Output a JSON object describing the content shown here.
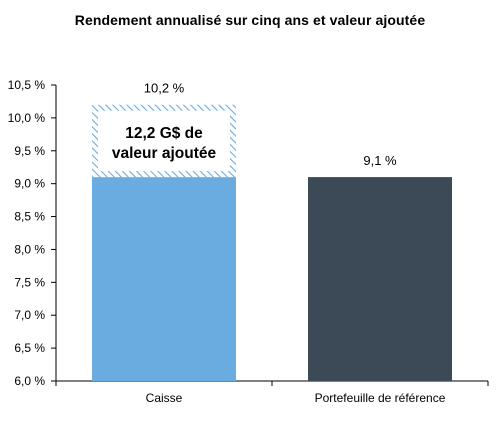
{
  "chart_data": {
    "type": "bar",
    "title": "Rendement annualisé sur cinq ans et valeur ajoutée",
    "xlabel": "",
    "ylabel": "",
    "categories": [
      "Caisse",
      "Portefeuille de référence"
    ],
    "values": [
      10.2,
      9.1
    ],
    "value_labels": [
      "10,2 %",
      "9,1 %"
    ],
    "stacked_segments": {
      "base_value": 9.1,
      "added_value_top": 10.2,
      "annotation_lines": [
        "12,2 G$ de",
        "valeur ajoutée"
      ]
    },
    "ylim": [
      6.0,
      10.5
    ],
    "yticks": [
      6.0,
      6.5,
      7.0,
      7.5,
      8.0,
      8.5,
      9.0,
      9.5,
      10.0,
      10.5
    ],
    "ytick_labels": [
      "6,0 %",
      "6,5 %",
      "7,0 %",
      "7,5 %",
      "8,0 %",
      "8,5 %",
      "9,0 %",
      "9,5 %",
      "10,0 %",
      "10,5 %"
    ],
    "grid": false,
    "colors": {
      "caisse_bar": "#6aace0",
      "added_value_hatch": "#6aace0",
      "reference_bar": "#3c4a58",
      "axis": "#000000"
    }
  }
}
